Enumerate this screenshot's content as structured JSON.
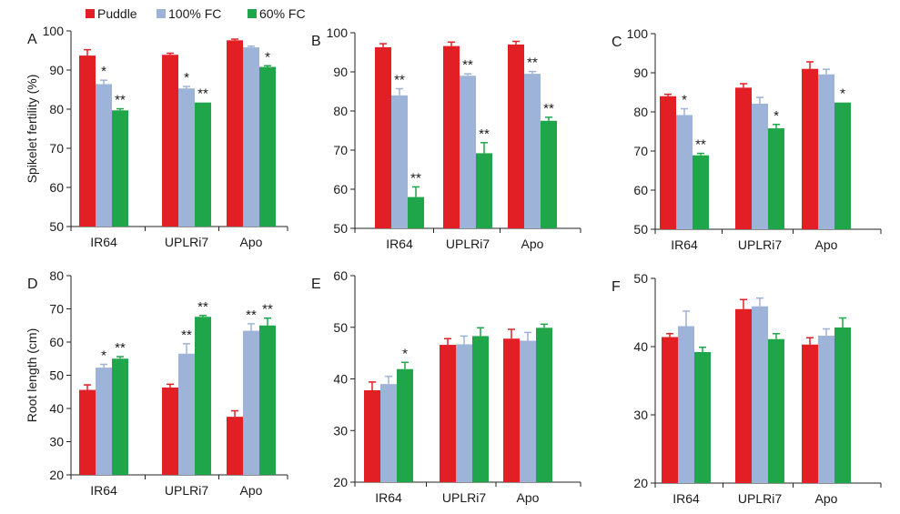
{
  "legend": {
    "entries": [
      {
        "name": "Puddle",
        "color": "#e31f26"
      },
      {
        "name": "100% FC",
        "color": "#9db3d8"
      },
      {
        "name": "60% FC",
        "color": "#1fa64a"
      }
    ]
  },
  "chart_data": [
    {
      "type": "bar",
      "panel": "A",
      "ylabel": "Spikelet fertility (%)",
      "ylim": [
        50,
        100
      ],
      "yticks": [
        50,
        60,
        70,
        80,
        90,
        100
      ],
      "categories": [
        "IR64",
        "UPLRi7",
        "Apo"
      ],
      "series": [
        {
          "name": "Puddle",
          "values": [
            93.7,
            93.9,
            97.6
          ],
          "errors": [
            1.5,
            0.4,
            0.3
          ],
          "sig": [
            "",
            "",
            ""
          ]
        },
        {
          "name": "100% FC",
          "values": [
            86.4,
            85.3,
            95.8
          ],
          "errors": [
            1.0,
            0.5,
            0.3
          ],
          "sig": [
            "*",
            "*",
            ""
          ]
        },
        {
          "name": "60% FC",
          "values": [
            79.7,
            81.7,
            90.8
          ],
          "errors": [
            0.4,
            0.0,
            0.3
          ],
          "sig": [
            "**",
            "**",
            "*"
          ]
        }
      ]
    },
    {
      "type": "bar",
      "panel": "B",
      "ylabel": "",
      "ylim": [
        50,
        100
      ],
      "yticks": [
        50,
        60,
        70,
        80,
        90,
        100
      ],
      "categories": [
        "IR64",
        "UPLRi7",
        "Apo"
      ],
      "series": [
        {
          "name": "Puddle",
          "values": [
            96.3,
            96.6,
            97.0
          ],
          "errors": [
            0.9,
            1.0,
            0.8
          ],
          "sig": [
            "",
            "",
            ""
          ]
        },
        {
          "name": "100% FC",
          "values": [
            84.0,
            89.0,
            89.5
          ],
          "errors": [
            1.7,
            0.5,
            0.6
          ],
          "sig": [
            "**",
            "**",
            "**"
          ]
        },
        {
          "name": "60% FC",
          "values": [
            58.0,
            69.2,
            77.5
          ],
          "errors": [
            2.6,
            2.7,
            0.9
          ],
          "sig": [
            "**",
            "**",
            "**"
          ]
        }
      ]
    },
    {
      "type": "bar",
      "panel": "C",
      "ylabel": "",
      "ylim": [
        50,
        100
      ],
      "yticks": [
        50,
        60,
        70,
        80,
        90,
        100
      ],
      "categories": [
        "IR64",
        "UPLRi7",
        "Apo"
      ],
      "series": [
        {
          "name": "Puddle",
          "values": [
            84.0,
            86.2,
            91.0
          ],
          "errors": [
            0.5,
            1.0,
            1.8
          ],
          "sig": [
            "",
            "",
            ""
          ]
        },
        {
          "name": "100% FC",
          "values": [
            79.2,
            82.1,
            89.6
          ],
          "errors": [
            1.6,
            1.6,
            1.3
          ],
          "sig": [
            "*",
            "",
            ""
          ]
        },
        {
          "name": "60% FC",
          "values": [
            68.9,
            75.8,
            82.4
          ],
          "errors": [
            0.5,
            1.0,
            0.0
          ],
          "sig": [
            "**",
            "*",
            "*"
          ]
        }
      ]
    },
    {
      "type": "bar",
      "panel": "D",
      "ylabel": "Root length (cm)",
      "ylim": [
        20,
        80
      ],
      "yticks": [
        20,
        30,
        40,
        50,
        60,
        70,
        80
      ],
      "categories": [
        "IR64",
        "UPLRi7",
        "Apo"
      ],
      "series": [
        {
          "name": "Puddle",
          "values": [
            45.6,
            46.3,
            37.5
          ],
          "errors": [
            1.5,
            1.0,
            1.8
          ],
          "sig": [
            "",
            "",
            ""
          ]
        },
        {
          "name": "100% FC",
          "values": [
            52.3,
            56.5,
            63.4
          ],
          "errors": [
            1.0,
            3.0,
            2.1
          ],
          "sig": [
            "*",
            "**",
            "**"
          ]
        },
        {
          "name": "60% FC",
          "values": [
            55.0,
            67.6,
            65.0
          ],
          "errors": [
            0.6,
            0.4,
            2.2
          ],
          "sig": [
            "**",
            "**",
            "**"
          ]
        }
      ]
    },
    {
      "type": "bar",
      "panel": "E",
      "ylabel": "",
      "ylim": [
        20,
        60
      ],
      "yticks": [
        20,
        30,
        40,
        50,
        60
      ],
      "categories": [
        "IR64",
        "UPLRi7",
        "Apo"
      ],
      "series": [
        {
          "name": "Puddle",
          "values": [
            37.8,
            46.6,
            47.8
          ],
          "errors": [
            1.6,
            1.2,
            1.8
          ],
          "sig": [
            "",
            "",
            ""
          ]
        },
        {
          "name": "100% FC",
          "values": [
            39.0,
            46.7,
            47.4
          ],
          "errors": [
            1.5,
            1.6,
            1.6
          ],
          "sig": [
            "",
            "",
            ""
          ]
        },
        {
          "name": "60% FC",
          "values": [
            41.9,
            48.3,
            49.9
          ],
          "errors": [
            1.3,
            1.6,
            0.7
          ],
          "sig": [
            "*",
            "",
            ""
          ]
        }
      ]
    },
    {
      "type": "bar",
      "panel": "F",
      "ylabel": "",
      "ylim": [
        20,
        50
      ],
      "yticks": [
        20,
        30,
        40,
        50
      ],
      "categories": [
        "IR64",
        "UPLRi7",
        "Apo"
      ],
      "series": [
        {
          "name": "Puddle",
          "values": [
            41.4,
            45.5,
            40.3
          ],
          "errors": [
            0.5,
            1.4,
            1.0
          ],
          "sig": [
            "",
            "",
            ""
          ]
        },
        {
          "name": "100% FC",
          "values": [
            43.0,
            45.9,
            41.6
          ],
          "errors": [
            2.2,
            1.2,
            1.0
          ],
          "sig": [
            "",
            "",
            ""
          ]
        },
        {
          "name": "60% FC",
          "values": [
            39.2,
            41.1,
            42.8
          ],
          "errors": [
            0.7,
            0.8,
            1.4
          ],
          "sig": [
            "",
            "",
            ""
          ]
        }
      ]
    }
  ]
}
